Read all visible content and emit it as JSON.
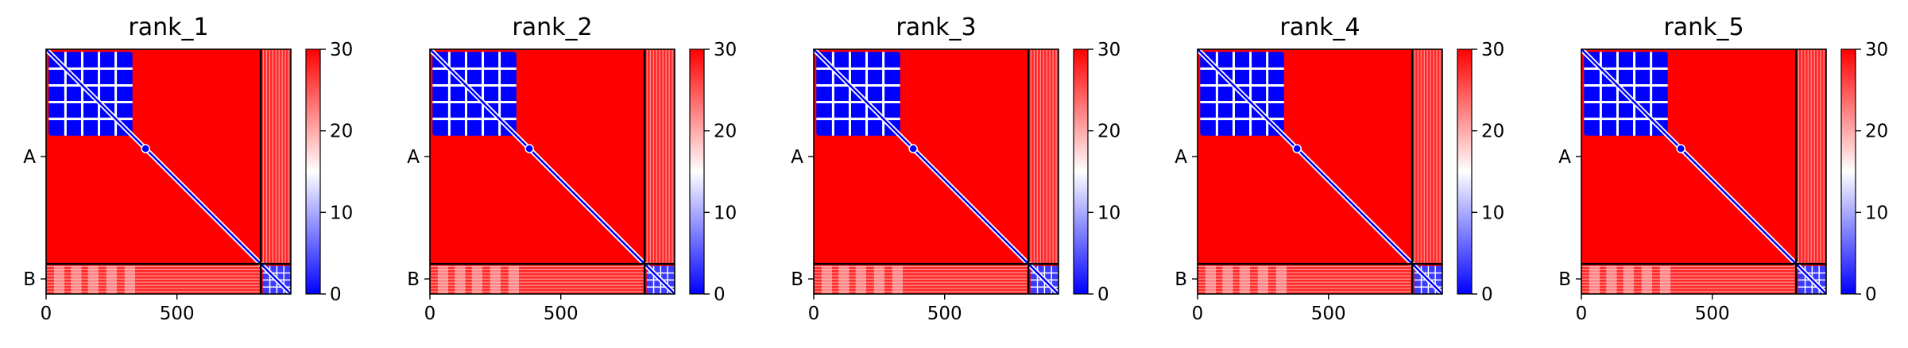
{
  "chart_data": [
    {
      "type": "heatmap",
      "title": "rank_1",
      "x_ticks": [
        0,
        500
      ],
      "x_tick_labels": [
        "0",
        "500"
      ],
      "y_tick_labels": [
        "A",
        "B"
      ],
      "xlim": [
        0,
        935
      ],
      "ylim": [
        0,
        935
      ],
      "chain_boundary": 820,
      "chains": [
        {
          "name": "A",
          "start": 0,
          "end": 820
        },
        {
          "name": "B",
          "start": 820,
          "end": 935
        }
      ],
      "colorbar": {
        "min": 0,
        "max": 30,
        "ticks": [
          0,
          10,
          20,
          30
        ],
        "tick_labels": [
          "0",
          "10",
          "20",
          "30"
        ],
        "colormap": "bwr"
      },
      "low_error_block": {
        "start": 10,
        "end": 330,
        "value": 3
      },
      "diagonal_value": 0
    },
    {
      "type": "heatmap",
      "title": "rank_2",
      "x_ticks": [
        0,
        500
      ],
      "x_tick_labels": [
        "0",
        "500"
      ],
      "y_tick_labels": [
        "A",
        "B"
      ],
      "xlim": [
        0,
        935
      ],
      "ylim": [
        0,
        935
      ],
      "chain_boundary": 820,
      "chains": [
        {
          "name": "A",
          "start": 0,
          "end": 820
        },
        {
          "name": "B",
          "start": 820,
          "end": 935
        }
      ],
      "colorbar": {
        "min": 0,
        "max": 30,
        "ticks": [
          0,
          10,
          20,
          30
        ],
        "tick_labels": [
          "0",
          "10",
          "20",
          "30"
        ],
        "colormap": "bwr"
      },
      "low_error_block": {
        "start": 10,
        "end": 330,
        "value": 3
      },
      "diagonal_value": 0
    },
    {
      "type": "heatmap",
      "title": "rank_3",
      "x_ticks": [
        0,
        500
      ],
      "x_tick_labels": [
        "0",
        "500"
      ],
      "y_tick_labels": [
        "A",
        "B"
      ],
      "xlim": [
        0,
        935
      ],
      "ylim": [
        0,
        935
      ],
      "chain_boundary": 820,
      "chains": [
        {
          "name": "A",
          "start": 0,
          "end": 820
        },
        {
          "name": "B",
          "start": 820,
          "end": 935
        }
      ],
      "colorbar": {
        "min": 0,
        "max": 30,
        "ticks": [
          0,
          10,
          20,
          30
        ],
        "tick_labels": [
          "0",
          "10",
          "20",
          "30"
        ],
        "colormap": "bwr"
      },
      "low_error_block": {
        "start": 10,
        "end": 330,
        "value": 3
      },
      "diagonal_value": 0
    },
    {
      "type": "heatmap",
      "title": "rank_4",
      "x_ticks": [
        0,
        500
      ],
      "x_tick_labels": [
        "0",
        "500"
      ],
      "y_tick_labels": [
        "A",
        "B"
      ],
      "xlim": [
        0,
        935
      ],
      "ylim": [
        0,
        935
      ],
      "chain_boundary": 820,
      "chains": [
        {
          "name": "A",
          "start": 0,
          "end": 820
        },
        {
          "name": "B",
          "start": 820,
          "end": 935
        }
      ],
      "colorbar": {
        "min": 0,
        "max": 30,
        "ticks": [
          0,
          10,
          20,
          30
        ],
        "tick_labels": [
          "0",
          "10",
          "20",
          "30"
        ],
        "colormap": "bwr"
      },
      "low_error_block": {
        "start": 10,
        "end": 330,
        "value": 3
      },
      "diagonal_value": 0
    },
    {
      "type": "heatmap",
      "title": "rank_5",
      "x_ticks": [
        0,
        500
      ],
      "x_tick_labels": [
        "0",
        "500"
      ],
      "y_tick_labels": [
        "A",
        "B"
      ],
      "xlim": [
        0,
        935
      ],
      "ylim": [
        0,
        935
      ],
      "chain_boundary": 820,
      "chains": [
        {
          "name": "A",
          "start": 0,
          "end": 820
        },
        {
          "name": "B",
          "start": 820,
          "end": 935
        }
      ],
      "colorbar": {
        "min": 0,
        "max": 30,
        "ticks": [
          0,
          10,
          20,
          30
        ],
        "tick_labels": [
          "0",
          "10",
          "20",
          "30"
        ],
        "colormap": "bwr"
      },
      "low_error_block": {
        "start": 10,
        "end": 330,
        "value": 3
      },
      "diagonal_value": 0
    }
  ],
  "colors": {
    "high": "#ff0000",
    "mid": "#ffffff",
    "low": "#0000ff",
    "axis": "#000000"
  }
}
